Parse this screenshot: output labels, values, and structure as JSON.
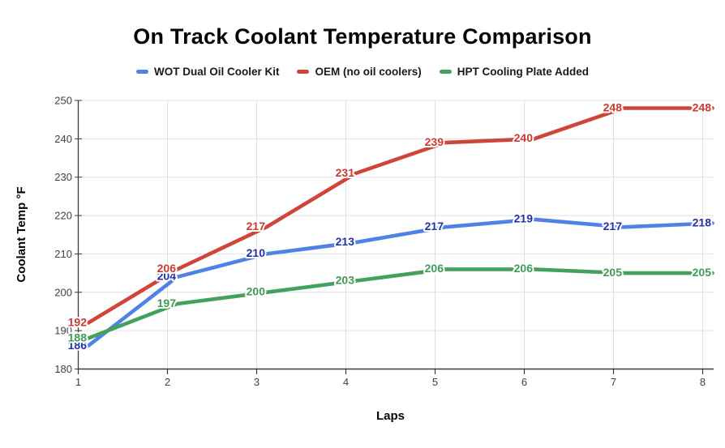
{
  "title": "On Track Coolant Temperature Comparison",
  "chart_data": {
    "type": "line",
    "title": "On Track Coolant Temperature Comparison",
    "xlabel": "Laps",
    "ylabel": "Coolant Temp °F",
    "x": [
      1,
      2,
      3,
      4,
      5,
      6,
      7,
      8
    ],
    "xlim": [
      1,
      8
    ],
    "ylim": [
      180,
      250
    ],
    "yticks": [
      180,
      190,
      200,
      210,
      220,
      230,
      240,
      250
    ],
    "grid": true,
    "legend_position": "top",
    "data_labels": true,
    "series": [
      {
        "name": "WOT Dual Oil Cooler Kit",
        "color": "#4f82e4",
        "label_color": "#2431a5",
        "values": [
          186,
          204,
          210,
          213,
          217,
          219,
          217,
          218
        ]
      },
      {
        "name": "OEM (no oil coolers)",
        "color": "#d04539",
        "label_color": "#c83b31",
        "values": [
          192,
          206,
          217,
          231,
          239,
          240,
          248,
          248
        ]
      },
      {
        "name": "HPT Cooling Plate Added",
        "color": "#43a15e",
        "label_color": "#3f9b55",
        "values": [
          188,
          197,
          200,
          203,
          206,
          206,
          205,
          205
        ]
      }
    ]
  },
  "colors": {
    "background": "#ffffff",
    "gridline": "#e0e0e0",
    "axis": "#3b3b3b",
    "tick_label": "#404040",
    "halo": "#ffffff"
  }
}
